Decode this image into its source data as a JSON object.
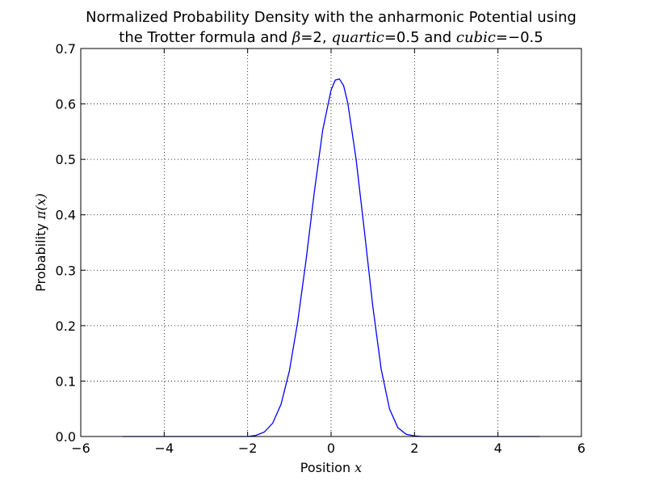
{
  "chart_data": {
    "type": "line",
    "title_line1": "Normalized Probability Density with the anharmonic Potential using",
    "title_line2_prefix": "the Trotter formula  and ",
    "title_beta_symbol": "β",
    "title_beta_eq": "=2, ",
    "title_quartic_name": "quartic",
    "title_quartic_eq": "=0.5",
    "title_and": " and ",
    "title_cubic_name": "cubic",
    "title_cubic_eq": "=−0.5",
    "xlabel_text": "Position ",
    "xlabel_var": "x",
    "ylabel_text": "Probability ",
    "ylabel_var": "π(x)",
    "xlim": [
      -6,
      6
    ],
    "ylim": [
      0,
      0.7
    ],
    "grid": true,
    "x_ticks": [
      -6,
      -4,
      -2,
      0,
      2,
      4,
      6
    ],
    "x_tick_labels": [
      "−6",
      "−4",
      "−2",
      "0",
      "2",
      "4",
      "6"
    ],
    "y_ticks": [
      0.0,
      0.1,
      0.2,
      0.3,
      0.4,
      0.5,
      0.6,
      0.7
    ],
    "y_tick_labels": [
      "0.0",
      "0.1",
      "0.2",
      "0.3",
      "0.4",
      "0.5",
      "0.6",
      "0.7"
    ],
    "series": [
      {
        "color": "#0000ff",
        "x": [
          -5.0,
          -2.2,
          -2.0,
          -1.8,
          -1.6,
          -1.4,
          -1.2,
          -1.0,
          -0.8,
          -0.6,
          -0.4,
          -0.2,
          0.0,
          0.1,
          0.2,
          0.3,
          0.4,
          0.6,
          0.8,
          1.0,
          1.2,
          1.4,
          1.6,
          1.8,
          2.0,
          2.2,
          5.0
        ],
        "y": [
          0.0,
          0.0,
          0.0,
          0.002,
          0.008,
          0.024,
          0.058,
          0.118,
          0.207,
          0.318,
          0.442,
          0.553,
          0.625,
          0.643,
          0.645,
          0.633,
          0.602,
          0.5,
          0.37,
          0.235,
          0.122,
          0.05,
          0.016,
          0.004,
          0.001,
          0.0,
          0.0
        ]
      }
    ]
  }
}
